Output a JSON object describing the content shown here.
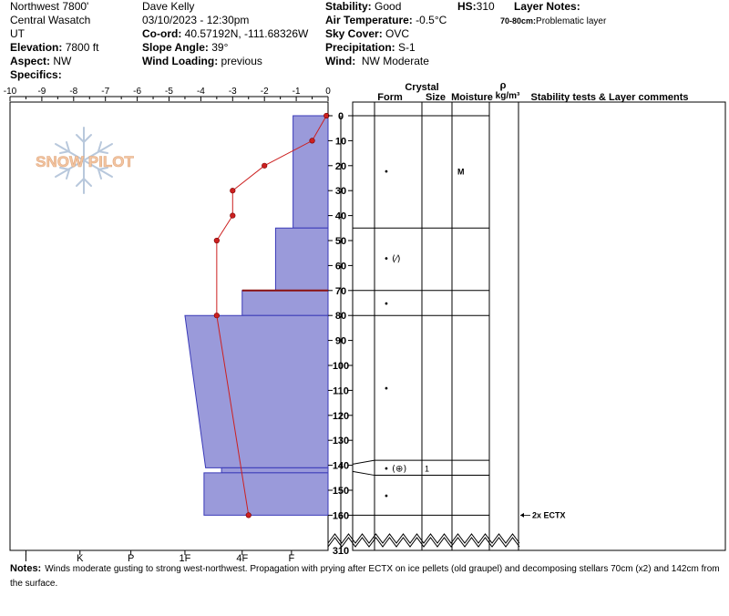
{
  "header": {
    "col1": {
      "location": "Northwest 7800'",
      "range": "Central Wasatch",
      "state": "UT",
      "elevation_label": "Elevation:",
      "elevation_value": "7800 ft",
      "aspect_label": "Aspect:",
      "aspect_value": "NW",
      "specifics_label": "Specifics:"
    },
    "col2": {
      "observer": "Dave Kelly",
      "datetime": "03/10/2023 - 12:30pm",
      "coord_label": "Co-ord:",
      "coord_value": "40.57192N, -111.68326W",
      "slope_label": "Slope Angle:",
      "slope_value": "39°",
      "wind_loading_label": "Wind Loading:",
      "wind_loading_value": "previous"
    },
    "col3": {
      "stability_label": "Stability:",
      "stability_value": "Good",
      "air_temp_label": "Air Temperature:",
      "air_temp_value": "-0.5°C",
      "sky_label": "Sky Cover:",
      "sky_value": "OVC",
      "precip_label": "Precipitation:",
      "precip_value": "S-1",
      "wind_label": "Wind:",
      "wind_value": "NW Moderate"
    },
    "hs_label": "HS:",
    "hs_value": "310",
    "layer_notes_label": "Layer Notes:",
    "layer_notes": [
      {
        "range": "70-80cm:",
        "text": "Problematic layer"
      }
    ]
  },
  "logo_text": "SNOW PILOT",
  "chart_data": {
    "type": "snow-profile",
    "temp_axis": {
      "ticks": [
        -10,
        -9,
        -8,
        -7,
        -6,
        -5,
        -4,
        -3,
        -2,
        -1,
        0
      ],
      "labels": [
        "-10",
        "-9",
        "-8",
        "-7",
        "-6",
        "-5",
        "-4",
        "-3",
        "-2",
        "-1",
        "0"
      ]
    },
    "hardness_axis": {
      "labels": [
        "I",
        "K",
        "P",
        "1F",
        "4F",
        "F"
      ],
      "positions": [
        -9.5,
        -7.8,
        -6.2,
        -4.5,
        -2.7,
        -1.15
      ]
    },
    "depth_axis": {
      "ticks": [
        0,
        10,
        20,
        30,
        40,
        50,
        60,
        70,
        80,
        90,
        100,
        110,
        120,
        130,
        140,
        150,
        160
      ],
      "labels": [
        "0",
        "10",
        "20",
        "30",
        "40",
        "50",
        "60",
        "70",
        "80",
        "90",
        "100",
        "110",
        "120",
        "130",
        "140",
        "150",
        "160"
      ],
      "break_label": "310"
    },
    "column_headers": {
      "crystal": "Crystal",
      "form": "Form",
      "size": "Size",
      "moisture": "Moisture",
      "rho": "ρ",
      "density_unit": "kg/m³",
      "comments": "Stability tests & Layer comments"
    },
    "temperature_profile": [
      {
        "depth": 0,
        "temp": -0.05
      },
      {
        "depth": 10,
        "temp": -0.5
      },
      {
        "depth": 20,
        "temp": -2.0
      },
      {
        "depth": 30,
        "temp": -3.0
      },
      {
        "depth": 40,
        "temp": -3.0
      },
      {
        "depth": 50,
        "temp": -3.5
      },
      {
        "depth": 80,
        "temp": -3.5
      },
      {
        "depth": 160,
        "temp": -2.5
      }
    ],
    "hardness_layers": [
      {
        "top": 0,
        "bottom": 45,
        "hardness_top": -1.1,
        "hardness_bottom": -1.1
      },
      {
        "top": 45,
        "bottom": 70,
        "hardness_top": -1.65,
        "hardness_bottom": -1.65
      },
      {
        "top": 70,
        "bottom": 80,
        "hardness_top": -2.7,
        "hardness_bottom": -2.7
      },
      {
        "top": 80,
        "bottom": 141,
        "hardness_top": -4.5,
        "hardness_bottom": -3.85
      },
      {
        "top": 141,
        "bottom": 143,
        "hardness_top": -3.35,
        "hardness_bottom": -3.35
      },
      {
        "top": 143,
        "bottom": 160,
        "hardness_top": -3.9,
        "hardness_bottom": -3.9
      }
    ],
    "problem_line_depth": 70,
    "layer_boundaries": [
      45,
      70,
      80
    ],
    "weak_layer": {
      "depth": 141,
      "top": 138,
      "bottom": 144
    },
    "crystal_rows": [
      {
        "depth": 22,
        "form": "•",
        "size": "",
        "moisture": "M"
      },
      {
        "depth": 57,
        "form": "• (⁄)",
        "size": "",
        "moisture": ""
      },
      {
        "depth": 75,
        "form": "•",
        "size": "",
        "moisture": ""
      },
      {
        "depth": 109,
        "form": "•",
        "size": "",
        "moisture": ""
      },
      {
        "depth": 141,
        "form": "• (⊕)",
        "size": "1",
        "moisture": ""
      },
      {
        "depth": 152,
        "form": "•",
        "size": "",
        "moisture": ""
      }
    ],
    "stability_tests": [
      {
        "depth": 160,
        "text": "2x ECTX"
      }
    ]
  },
  "notes": {
    "label": "Notes:",
    "text": "Winds moderate gusting to strong west-northwest. Propagation with prying after ECTX on ice pellets (old graupel) and decomposing stellars 70cm (x2) and 142cm from the surface."
  },
  "colors": {
    "hardness_fill": "#9a9ada",
    "hardness_stroke": "#3a3ab8",
    "temp_line": "#cc2020",
    "logo": "#f3c6a2"
  }
}
